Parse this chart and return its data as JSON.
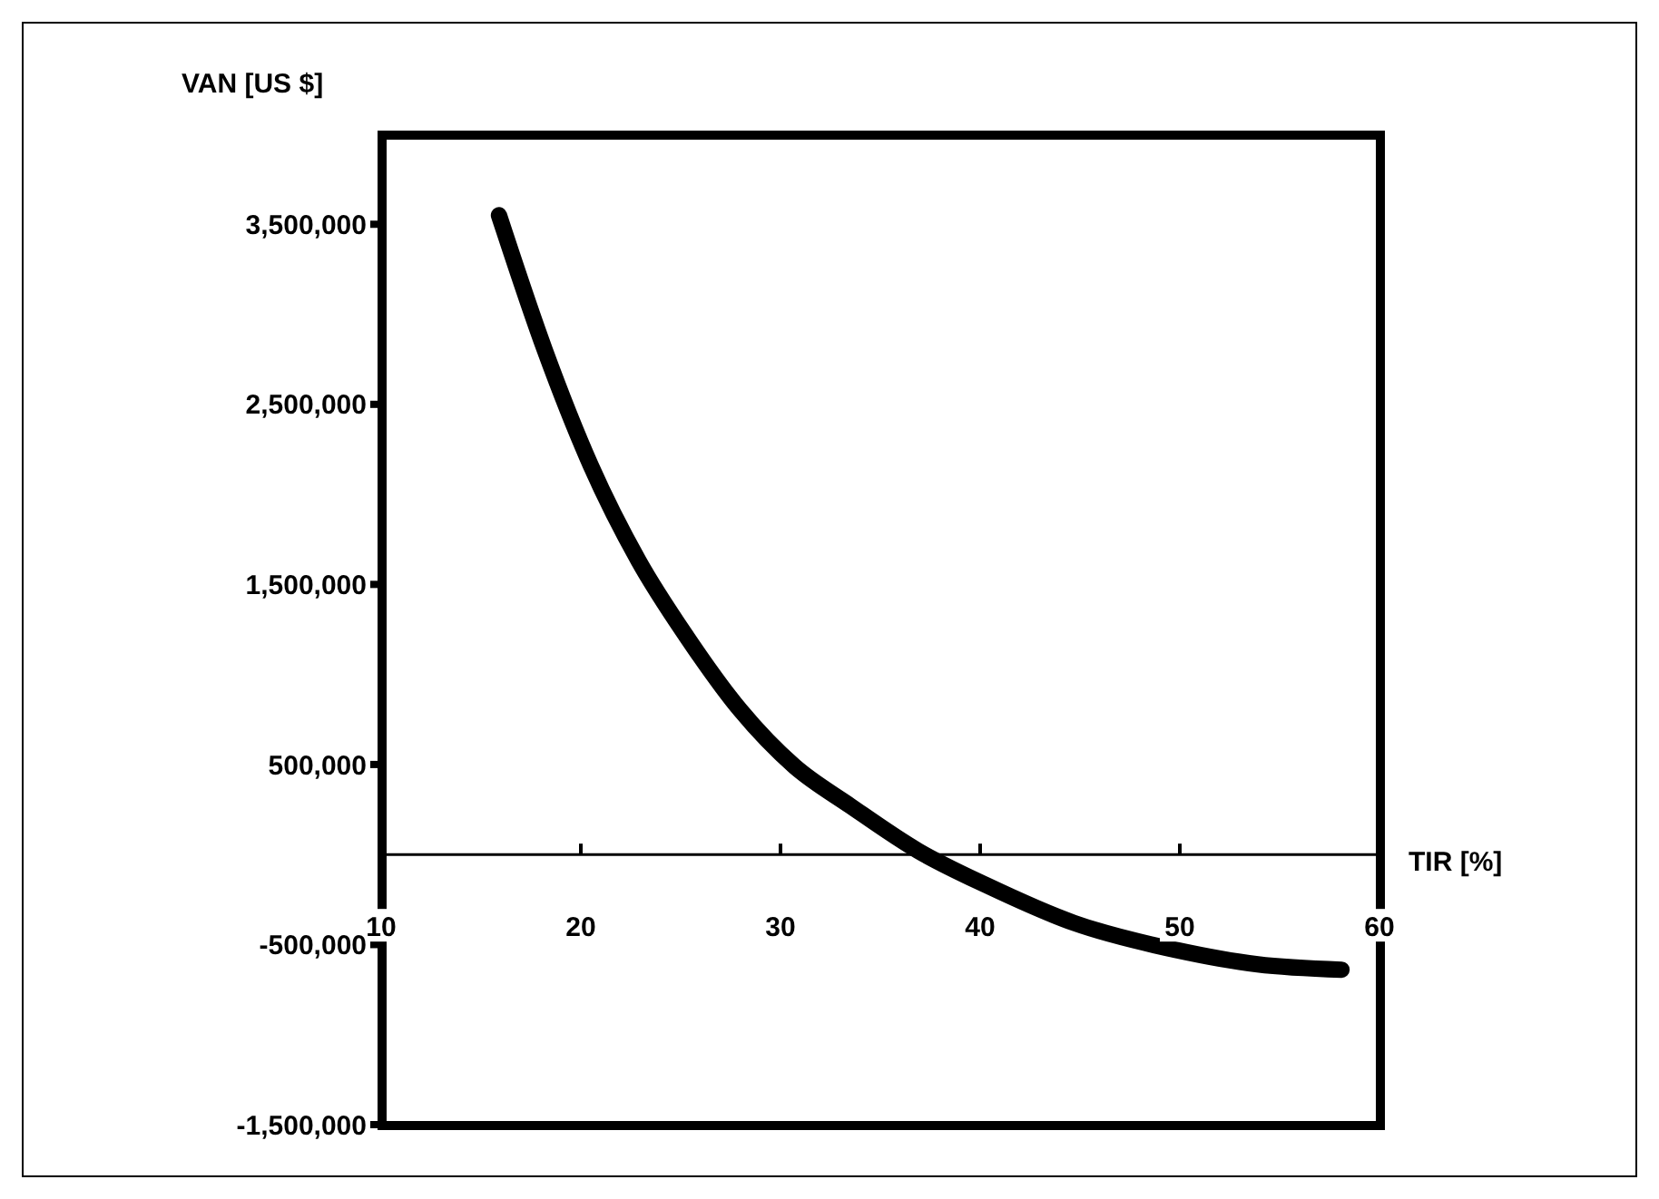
{
  "chart_data": {
    "type": "line",
    "xlabel": "TIR [%]",
    "ylabel": "VAN [US $]",
    "x": [
      15.9,
      18.2,
      20.5,
      22.9,
      25.3,
      28.0,
      30.7,
      33.5,
      36.9,
      40.3,
      44.7,
      49.8,
      53.9,
      58.1
    ],
    "series": [
      {
        "color": "#000000",
        "values": [
          3550000,
          2800000,
          2160000,
          1630000,
          1210000,
          800000,
          490000,
          270000,
          20000,
          -170000,
          -380000,
          -530000,
          -610000,
          -640000
        ]
      }
    ],
    "xlim": [
      10,
      60
    ],
    "xticks": [
      10,
      20,
      30,
      40,
      50,
      60
    ],
    "ylim": [
      -1500000,
      4000000
    ],
    "yticks": [
      {
        "value": -1500000,
        "label": "-1,500,000"
      },
      {
        "value": -500000,
        "label": "-500,000"
      },
      {
        "value": 500000,
        "label": "500,000"
      },
      {
        "value": 1500000,
        "label": "1,500,000"
      },
      {
        "value": 2500000,
        "label": "2,500,000"
      },
      {
        "value": 3500000,
        "label": "3,500,000"
      }
    ],
    "marker": "none",
    "line_style": "solid"
  }
}
